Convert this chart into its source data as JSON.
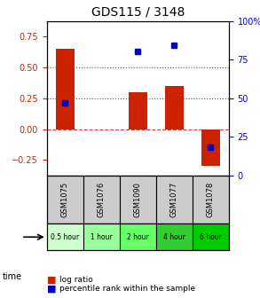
{
  "title": "GDS115 / 3148",
  "samples": [
    "GSM1075",
    "GSM1076",
    "GSM1090",
    "GSM1077",
    "GSM1078"
  ],
  "time_labels": [
    "0.5 hour",
    "1 hour",
    "2 hour",
    "4 hour",
    "6 hour"
  ],
  "time_colors": [
    "#ccffcc",
    "#99ff99",
    "#66ff66",
    "#33cc33",
    "#00cc00"
  ],
  "log_ratio": [
    0.65,
    0.0,
    0.3,
    0.35,
    -0.3
  ],
  "percentile": [
    0.47,
    null,
    0.8,
    0.84,
    0.18
  ],
  "bar_color": "#cc2200",
  "dot_color": "#0000cc",
  "ylim_left": [
    -0.375,
    0.875
  ],
  "ylim_right": [
    0,
    100
  ],
  "yticks_left": [
    -0.25,
    0,
    0.25,
    0.5,
    0.75
  ],
  "yticks_right": [
    0,
    25,
    50,
    75,
    100
  ],
  "hline_y": [
    0.0,
    0.25,
    0.5
  ],
  "hline_styles": [
    "--",
    ":",
    ":"
  ],
  "hline_colors": [
    "#cc4444",
    "#555555",
    "#555555"
  ],
  "zero_line_color": "#cc4444",
  "dotted_line_color": "#555555",
  "sample_box_color": "#cccccc",
  "legend_lr_color": "#cc2200",
  "legend_dot_color": "#0000cc"
}
